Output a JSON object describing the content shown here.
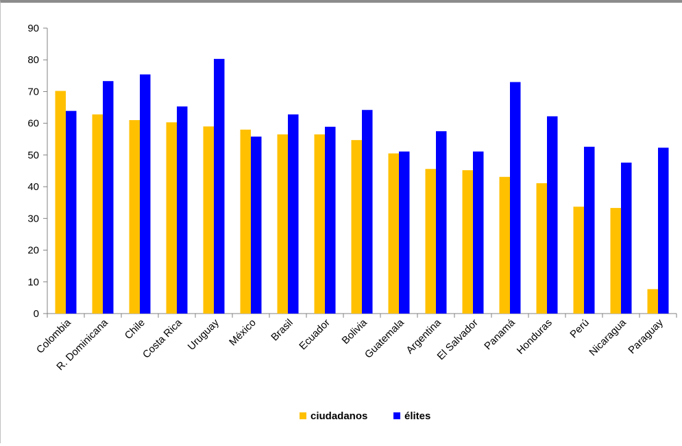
{
  "chart_data": {
    "type": "bar",
    "title": "",
    "xlabel": "",
    "ylabel": "",
    "ylim": [
      0,
      90
    ],
    "yticks": [
      0,
      10,
      20,
      30,
      40,
      50,
      60,
      70,
      80,
      90
    ],
    "grid": false,
    "legend_position": "bottom",
    "categories": [
      "Colombia",
      "R. Dominicana",
      "Chile",
      "Costa Rica",
      "Uruguay",
      "México",
      "Brasil",
      "Ecuador",
      "Bolivia",
      "Guatemala",
      "Argentina",
      "El Salvador",
      "Panamá",
      "Honduras",
      "Perú",
      "Nicaragua",
      "Paraguay"
    ],
    "series": [
      {
        "name": "ciudadanos",
        "color": "#FFC000",
        "values": [
          70.2,
          62.8,
          61.0,
          60.3,
          59.0,
          58.0,
          56.5,
          56.5,
          54.7,
          50.5,
          45.6,
          45.2,
          43.1,
          41.1,
          33.7,
          33.3,
          7.7
        ]
      },
      {
        "name": "élites",
        "color": "#0000FF",
        "values": [
          63.9,
          73.3,
          75.4,
          65.3,
          80.3,
          55.8,
          62.8,
          58.9,
          64.2,
          51.1,
          57.5,
          51.1,
          73.0,
          62.2,
          52.6,
          47.6,
          52.3
        ]
      }
    ]
  }
}
